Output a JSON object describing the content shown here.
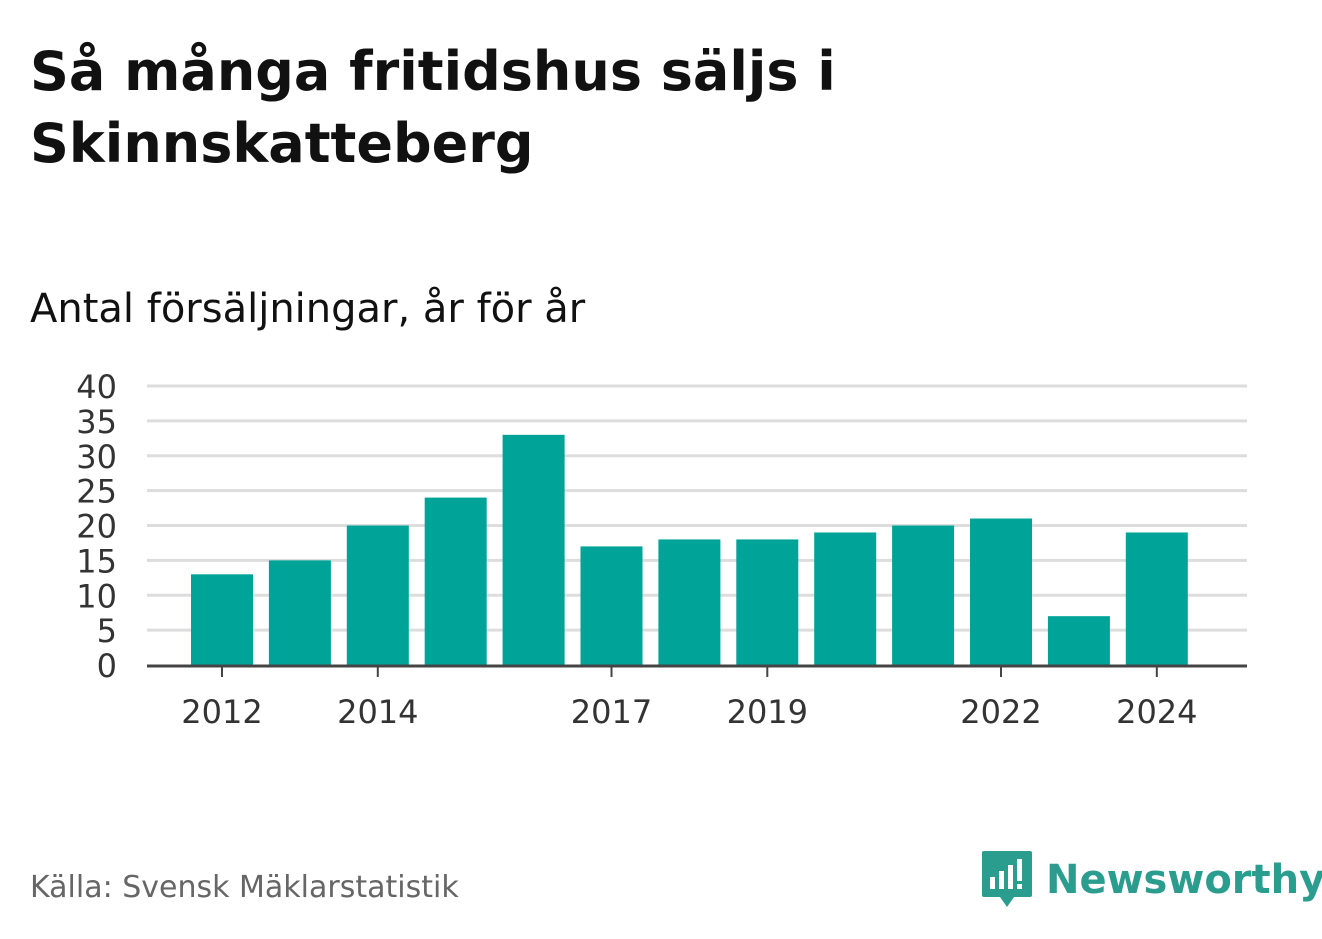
{
  "title": "Så många fritidshus säljs i Skinnskatteberg",
  "subtitle": "Antal försäljningar, år för år",
  "source": "Källa: Svensk Mäklarstatistik",
  "brand": {
    "name": "Newsworthy",
    "icon": "newsworthy-logo-icon",
    "color": "#2a9d8f"
  },
  "colors": {
    "bar": "#00a398",
    "grid": "#dddddd",
    "axis": "#444444",
    "tick_text": "#333333"
  },
  "chart_data": {
    "type": "bar",
    "title": "",
    "xlabel": "",
    "ylabel": "",
    "categories": [
      "2012",
      "2013",
      "2014",
      "2015",
      "2016",
      "2017",
      "2018",
      "2019",
      "2020",
      "2021",
      "2022",
      "2023",
      "2024"
    ],
    "x_tick_labels": [
      "2012",
      "2014",
      "2017",
      "2019",
      "2022",
      "2024"
    ],
    "values": [
      13,
      15,
      20,
      24,
      33,
      17,
      18,
      18,
      19,
      20,
      21,
      7,
      19
    ],
    "ylim": [
      0,
      40
    ],
    "y_ticks": [
      0,
      5,
      10,
      15,
      20,
      25,
      30,
      35,
      40
    ],
    "grid": true,
    "legend": "none"
  }
}
